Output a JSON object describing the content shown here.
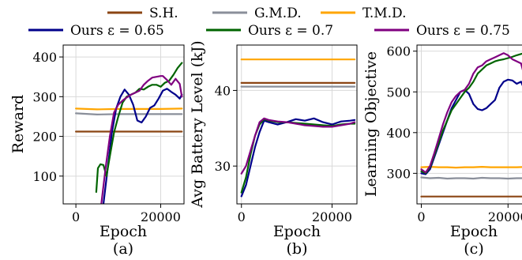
{
  "legend": {
    "entries": [
      {
        "label": "S.H.",
        "color": "#8B4513"
      },
      {
        "label": "G.M.D.",
        "color": "#8A8F9A"
      },
      {
        "label": "T.M.D.",
        "color": "#FFA500"
      },
      {
        "label": "Ours ε = 0.65",
        "color": "#00008B"
      },
      {
        "label": "Ours ε = 0.7",
        "color": "#006400"
      },
      {
        "label": "Ours ε = 0.75",
        "color": "#800080"
      }
    ]
  },
  "chart_data": [
    {
      "type": "line",
      "caption": "(a)",
      "xlabel": "Epoch",
      "ylabel": "Reward",
      "xlim": [
        -3000,
        25500
      ],
      "ylim": [
        30,
        430
      ],
      "xticks": [
        0,
        20000
      ],
      "yticks": [
        100,
        200,
        300,
        400
      ],
      "grid": true,
      "series": [
        {
          "name": "S.H.",
          "color": "#8B4513",
          "x": [
            0,
            25000
          ],
          "y": [
            212,
            212
          ]
        },
        {
          "name": "G.M.D.",
          "color": "#8A8F9A",
          "x": [
            0,
            5000,
            10000,
            15000,
            20000,
            25000
          ],
          "y": [
            258,
            255,
            256,
            256,
            256,
            256
          ]
        },
        {
          "name": "T.M.D.",
          "color": "#FFA500",
          "x": [
            0,
            5000,
            10000,
            15000,
            20000,
            25000
          ],
          "y": [
            270,
            268,
            269,
            269,
            269,
            270
          ]
        },
        {
          "name": "Ours ε = 0.65",
          "color": "#00008B",
          "x": [
            6500,
            7500,
            8500,
            9500,
            10500,
            11500,
            12500,
            13500,
            14500,
            15500,
            16500,
            17500,
            18500,
            19500,
            20500,
            21500,
            22500,
            23500,
            24500,
            25000
          ],
          "y": [
            30,
            120,
            210,
            270,
            300,
            318,
            305,
            280,
            240,
            235,
            250,
            272,
            278,
            295,
            315,
            320,
            312,
            305,
            295,
            305
          ]
        },
        {
          "name": "Ours ε = 0.7",
          "color": "#006400",
          "x": [
            4800,
            5200,
            5800,
            6500,
            7200,
            8000,
            9000,
            10000,
            11000,
            12000,
            13000,
            14000,
            15000,
            16000,
            17000,
            18000,
            19000,
            20000,
            21000,
            22000,
            23000,
            24000,
            25000
          ],
          "y": [
            60,
            120,
            130,
            128,
            100,
            150,
            210,
            250,
            285,
            300,
            305,
            310,
            320,
            318,
            325,
            330,
            330,
            325,
            335,
            340,
            355,
            372,
            385
          ]
        },
        {
          "name": "Ours ε = 0.75",
          "color": "#800080",
          "x": [
            6000,
            7000,
            8000,
            9000,
            10000,
            11000,
            12000,
            13000,
            14000,
            15000,
            16000,
            17000,
            18000,
            19000,
            20000,
            20500,
            21500,
            22500,
            23500,
            24500,
            25000
          ],
          "y": [
            30,
            120,
            200,
            260,
            280,
            290,
            298,
            305,
            310,
            315,
            330,
            340,
            348,
            350,
            352,
            352,
            342,
            330,
            345,
            332,
            300
          ]
        }
      ]
    },
    {
      "type": "line",
      "caption": "(b)",
      "xlabel": "Epoch",
      "ylabel": "Avg Battery Level (kJ)",
      "xlim": [
        -1000,
        25500
      ],
      "ylim": [
        25,
        46
      ],
      "xticks": [
        0,
        20000
      ],
      "yticks": [
        30,
        40
      ],
      "grid": true,
      "series": [
        {
          "name": "S.H.",
          "color": "#8B4513",
          "x": [
            0,
            25000
          ],
          "y": [
            41.0,
            41.0
          ]
        },
        {
          "name": "G.M.D.",
          "color": "#8A8F9A",
          "x": [
            0,
            25000
          ],
          "y": [
            40.5,
            40.5
          ]
        },
        {
          "name": "T.M.D.",
          "color": "#FFA500",
          "x": [
            0,
            25000
          ],
          "y": [
            44.1,
            44.1
          ]
        },
        {
          "name": "Ours ε = 0.65",
          "color": "#00008B",
          "x": [
            0,
            1000,
            2000,
            3000,
            4000,
            5000,
            6000,
            8000,
            10000,
            12000,
            14000,
            16000,
            18000,
            20000,
            22000,
            24000,
            25000
          ],
          "y": [
            26.0,
            27.5,
            30.0,
            32.5,
            34.5,
            36.0,
            35.8,
            35.5,
            35.8,
            36.2,
            36.0,
            36.3,
            35.8,
            35.5,
            35.9,
            36.0,
            36.1
          ]
        },
        {
          "name": "Ours ε = 0.7",
          "color": "#006400",
          "x": [
            0,
            1000,
            2000,
            3000,
            4000,
            5000,
            6000,
            8000,
            10000,
            12000,
            14000,
            16000,
            18000,
            20000,
            22000,
            24000,
            25000
          ],
          "y": [
            26.5,
            28.5,
            31.5,
            34.0,
            35.5,
            36.2,
            36.0,
            35.8,
            35.8,
            35.7,
            35.6,
            35.5,
            35.4,
            35.3,
            35.5,
            35.6,
            35.6
          ]
        },
        {
          "name": "Ours ε = 0.75",
          "color": "#800080",
          "x": [
            0,
            1000,
            2000,
            3000,
            4000,
            5000,
            6000,
            8000,
            10000,
            12000,
            14000,
            16000,
            18000,
            20000,
            22000,
            24000,
            25000
          ],
          "y": [
            29.0,
            30.0,
            32.0,
            34.0,
            35.8,
            36.3,
            36.1,
            35.9,
            35.8,
            35.6,
            35.4,
            35.3,
            35.2,
            35.2,
            35.4,
            35.6,
            35.8
          ]
        }
      ]
    },
    {
      "type": "line",
      "caption": "(c)",
      "xlabel": "Epoch",
      "ylabel": "Learning Objective",
      "xlim": [
        -1000,
        24500
      ],
      "ylim": [
        225,
        615
      ],
      "xticks": [
        0,
        20000
      ],
      "yticks": [
        300,
        400,
        500,
        600
      ],
      "grid": true,
      "series": [
        {
          "name": "S.H.",
          "color": "#8B4513",
          "x": [
            0,
            24500
          ],
          "y": [
            243,
            243
          ]
        },
        {
          "name": "G.M.D.",
          "color": "#8A8F9A",
          "x": [
            0,
            2000,
            4000,
            6000,
            8000,
            10000,
            12000,
            14000,
            16000,
            18000,
            20000,
            22000,
            24500
          ],
          "y": [
            290,
            288,
            289,
            287,
            288,
            288,
            287,
            289,
            288,
            288,
            287,
            288,
            288
          ]
        },
        {
          "name": "T.M.D.",
          "color": "#FFA500",
          "x": [
            0,
            2000,
            4000,
            6000,
            8000,
            10000,
            12000,
            14000,
            16000,
            18000,
            20000,
            22000,
            24500
          ],
          "y": [
            315,
            316,
            315,
            315,
            314,
            315,
            315,
            316,
            315,
            315,
            315,
            315,
            316
          ]
        },
        {
          "name": "Ours ε = 0.65",
          "color": "#00008B",
          "x": [
            0,
            1000,
            2000,
            3000,
            4000,
            5000,
            6000,
            7000,
            8000,
            9000,
            10000,
            11000,
            12000,
            13000,
            14000,
            15000,
            16000,
            17000,
            18000,
            19000,
            20000,
            21000,
            22000,
            23000,
            24000,
            24500
          ],
          "y": [
            300,
            298,
            310,
            340,
            370,
            400,
            430,
            460,
            480,
            500,
            505,
            495,
            470,
            458,
            455,
            460,
            470,
            480,
            510,
            525,
            530,
            528,
            520,
            525,
            500,
            495
          ]
        },
        {
          "name": "Ours ε = 0.7",
          "color": "#006400",
          "x": [
            0,
            1000,
            2000,
            3000,
            4000,
            5000,
            6000,
            7000,
            8000,
            9000,
            10000,
            11000,
            12000,
            13000,
            14000,
            15000,
            16000,
            17000,
            18000,
            19000,
            20000,
            21000,
            22000,
            23000,
            24000,
            24500
          ],
          "y": [
            305,
            300,
            315,
            345,
            375,
            405,
            430,
            455,
            470,
            485,
            500,
            510,
            525,
            545,
            555,
            565,
            570,
            575,
            578,
            580,
            583,
            586,
            590,
            593,
            596,
            598
          ]
        },
        {
          "name": "Ours ε = 0.75",
          "color": "#800080",
          "x": [
            0,
            1000,
            2000,
            3000,
            4000,
            5000,
            6000,
            7000,
            8000,
            9000,
            10000,
            11000,
            12000,
            13000,
            14000,
            15000,
            16000,
            17000,
            18000,
            19000,
            20000,
            21000,
            22000,
            23000,
            24000,
            24500
          ],
          "y": [
            310,
            302,
            318,
            350,
            385,
            420,
            450,
            475,
            490,
            500,
            505,
            520,
            545,
            560,
            565,
            575,
            580,
            585,
            590,
            595,
            590,
            580,
            575,
            570,
            530,
            510
          ]
        }
      ]
    }
  ]
}
